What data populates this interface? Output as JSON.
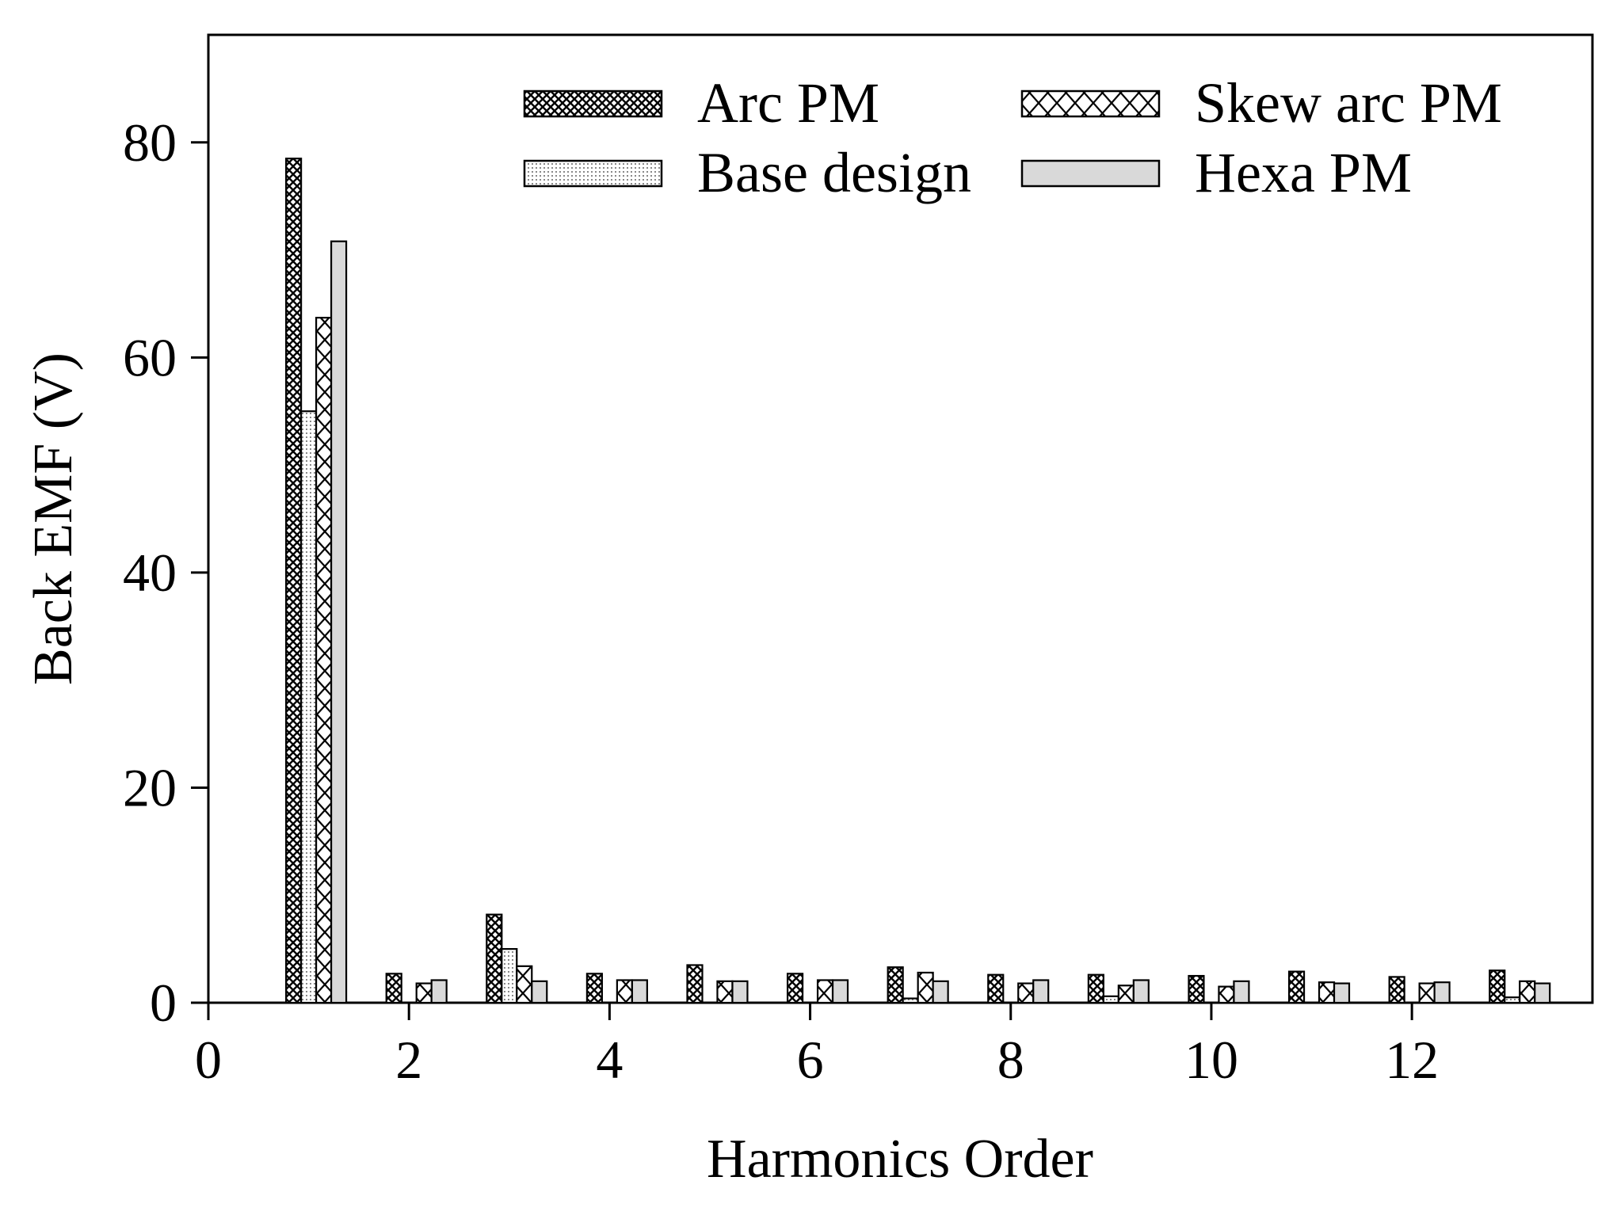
{
  "chart_data": {
    "type": "bar",
    "title": "",
    "xlabel": "Harmonics Order",
    "ylabel": "Back EMF (V)",
    "xlim": [
      0,
      13.8
    ],
    "ylim": [
      0,
      90
    ],
    "xticks": [
      0,
      2,
      4,
      6,
      8,
      10,
      12
    ],
    "yticks": [
      0,
      20,
      40,
      60,
      80
    ],
    "grid": false,
    "legend_position": "top-right",
    "categories": [
      1,
      2,
      3,
      4,
      5,
      6,
      7,
      8,
      9,
      10,
      11,
      12,
      13
    ],
    "series": [
      {
        "name": "Arc PM",
        "pattern": "crosshatch",
        "values": [
          78.5,
          2.7,
          8.2,
          2.7,
          3.5,
          2.7,
          3.3,
          2.6,
          2.6,
          2.5,
          2.9,
          2.4,
          3.0
        ]
      },
      {
        "name": "Base design",
        "pattern": "dots",
        "values": [
          55.0,
          0.0,
          5.0,
          0.0,
          0.0,
          0.0,
          0.4,
          0.0,
          0.6,
          0.0,
          0.0,
          0.0,
          0.5
        ]
      },
      {
        "name": "Skew arc PM",
        "pattern": "zigzag",
        "values": [
          63.7,
          1.8,
          3.4,
          2.1,
          2.0,
          2.1,
          2.8,
          1.8,
          1.6,
          1.5,
          1.9,
          1.8,
          2.0
        ]
      },
      {
        "name": "Hexa PM",
        "pattern": "gray",
        "values": [
          70.8,
          2.1,
          2.0,
          2.1,
          2.0,
          2.1,
          2.0,
          2.1,
          2.1,
          2.0,
          1.8,
          1.9,
          1.8
        ]
      }
    ],
    "colors": {
      "axis": "#000000",
      "bar_stroke": "#000000",
      "hexa_fill": "#d9d9d9",
      "base_dot": "#888888"
    }
  }
}
